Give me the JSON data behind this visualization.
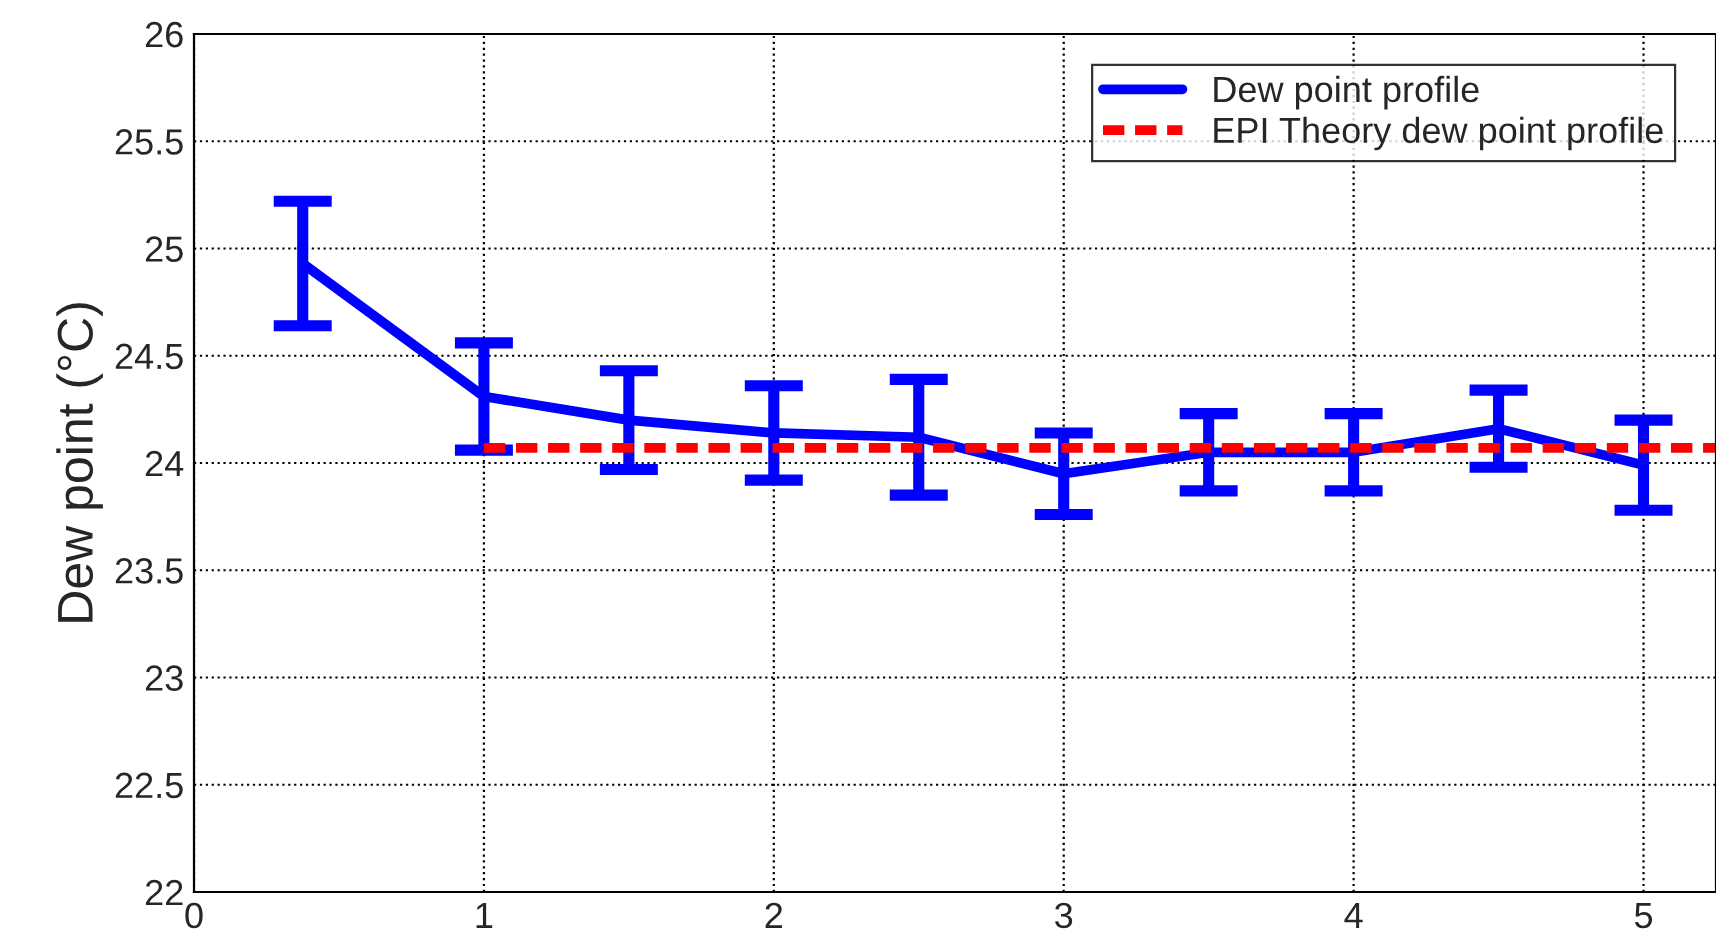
{
  "chart_data": {
    "type": "line",
    "ylabel": "Dew point (°C)",
    "xlim": [
      0,
      5.25
    ],
    "ylim": [
      22,
      26
    ],
    "xticks": [
      0,
      1,
      2,
      3,
      4,
      5
    ],
    "yticks": [
      22,
      22.5,
      23,
      23.5,
      24,
      24.5,
      25,
      25.5,
      26
    ],
    "grid": true,
    "legend": "top right",
    "series": [
      {
        "name": "Dew point profile",
        "color": "#0000ff",
        "line_style": "solid",
        "x": [
          0.375,
          1,
          1.5,
          2,
          2.5,
          3,
          3.5,
          4,
          4.5,
          5
        ],
        "values": [
          24.93,
          24.31,
          24.2,
          24.14,
          24.12,
          23.95,
          24.05,
          24.05,
          24.16,
          23.99
        ],
        "errors": [
          0.29,
          0.25,
          0.23,
          0.22,
          0.27,
          0.19,
          0.18,
          0.18,
          0.18,
          0.21
        ]
      },
      {
        "name": "EPI Theory dew point profile",
        "color": "#ff0000",
        "line_style": "dashed",
        "x": [
          1,
          5.25
        ],
        "values": [
          24.07,
          24.07
        ]
      }
    ]
  }
}
